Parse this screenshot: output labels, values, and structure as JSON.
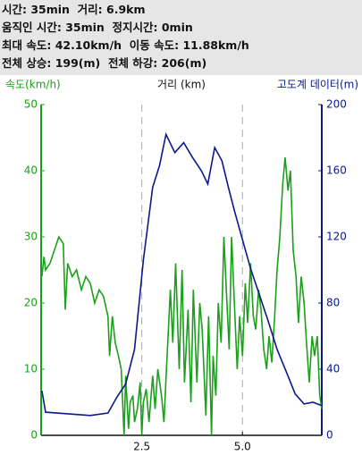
{
  "header": {
    "lines": [
      "시간: 35min  거리: 6.9km",
      "움직인 시간: 35min  정지시간: 0min",
      "최대 속도: 42.10km/h  이동 속도: 11.88km/h",
      "전체 상승: 199(m)  전체 하강: 206(m)"
    ]
  },
  "chart_data": {
    "type": "line",
    "xlabel": "거리 (km)",
    "xlim": [
      0,
      6.97
    ],
    "xticks": [
      2.5,
      {
        "value": 5,
        "label": "5.0"
      }
    ],
    "grid": true,
    "ylim": [
      0,
      50
    ],
    "yticks": [
      0,
      10,
      20,
      30,
      40,
      50
    ],
    "y2lim": [
      0,
      200
    ],
    "y2ticks": [
      0,
      40,
      80,
      120,
      160,
      200
    ],
    "series": [
      {
        "name": "속도(km/h)",
        "color": "#1aa01a",
        "axis": "y",
        "x": [
          0.02,
          0.07,
          0.11,
          0.22,
          0.33,
          0.44,
          0.55,
          0.6,
          0.66,
          0.77,
          0.88,
          1.0,
          1.11,
          1.22,
          1.33,
          1.44,
          1.55,
          1.66,
          1.7,
          1.77,
          1.84,
          1.92,
          1.99,
          2.06,
          2.1,
          2.17,
          2.21,
          2.28,
          2.32,
          2.39,
          2.46,
          2.5,
          2.54,
          2.61,
          2.68,
          2.77,
          2.83,
          2.9,
          2.99,
          3.05,
          3.12,
          3.21,
          3.27,
          3.34,
          3.43,
          3.5,
          3.56,
          3.65,
          3.72,
          3.78,
          3.87,
          3.94,
          4.0,
          4.09,
          4.16,
          4.23,
          4.27,
          4.34,
          4.4,
          4.47,
          4.54,
          4.6,
          4.67,
          4.73,
          4.8,
          4.87,
          4.93,
          5.0,
          5.07,
          5.13,
          5.2,
          5.27,
          5.33,
          5.4,
          5.46,
          5.53,
          5.6,
          5.66,
          5.73,
          5.8,
          5.86,
          5.93,
          6.0,
          6.06,
          6.13,
          6.19,
          6.26,
          6.33,
          6.39,
          6.46,
          6.53,
          6.59,
          6.66,
          6.73,
          6.79,
          6.86,
          6.92,
          6.97
        ],
        "values": [
          24,
          27,
          25,
          26,
          28,
          30,
          29,
          19,
          26,
          24,
          25,
          22,
          24,
          23,
          20,
          22,
          21,
          18,
          12,
          18,
          14,
          12,
          10,
          0,
          9,
          1,
          5,
          6,
          2,
          4,
          8,
          0,
          5,
          7,
          2,
          9,
          4,
          10,
          6,
          2,
          11,
          22,
          14,
          26,
          10,
          25,
          8,
          19,
          5,
          22,
          8,
          20,
          16,
          3,
          18,
          0,
          12,
          6,
          20,
          14,
          30,
          22,
          13,
          30,
          20,
          10,
          18,
          12,
          23,
          17,
          26,
          18,
          16,
          22,
          19,
          13,
          10,
          15,
          11,
          18,
          25,
          30,
          38,
          42,
          37,
          40,
          28,
          24,
          17,
          24,
          20,
          14,
          8,
          15,
          12,
          15,
          6,
          4
        ]
      },
      {
        "name": "고도계 데이터(m)",
        "color": "#0a1a8c",
        "axis": "y2",
        "x": [
          0.02,
          0.11,
          1.22,
          1.66,
          1.88,
          2.1,
          2.32,
          2.54,
          2.77,
          2.94,
          3.1,
          3.32,
          3.54,
          3.76,
          3.98,
          4.14,
          4.31,
          4.49,
          4.65,
          4.8,
          4.98,
          5.2,
          5.42,
          5.64,
          5.86,
          6.08,
          6.31,
          6.53,
          6.75,
          6.97
        ],
        "values": [
          27,
          14,
          12,
          13.5,
          23,
          31,
          52,
          106,
          150,
          163,
          182,
          171,
          177,
          168,
          160,
          152,
          174,
          166,
          150,
          136,
          120,
          101,
          85,
          69,
          52,
          39,
          25,
          19,
          20,
          18
        ]
      }
    ]
  }
}
